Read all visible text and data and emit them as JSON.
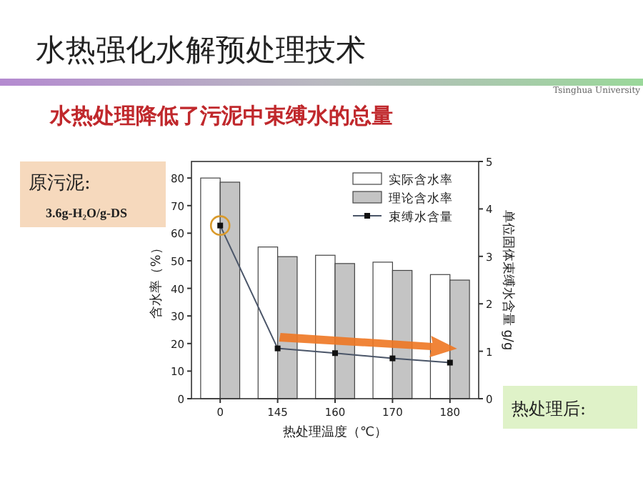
{
  "chart_data": {
    "type": "bar",
    "title": "水热强化水解预处理技术",
    "subtitle": "水热处理降低了污泥中束缚水的总量",
    "xlabel": "热处理温度（℃）",
    "ylabel": "含水率（%）",
    "y2label": "单位固体束缚水含量 g/g",
    "categories": [
      "0",
      "145",
      "160",
      "170",
      "180"
    ],
    "series": [
      {
        "name": "实际含水率",
        "color": "#ffffff",
        "values": [
          80,
          55,
          52,
          49.5,
          45
        ]
      },
      {
        "name": "理论含水率",
        "color": "#c4c4c4",
        "values": [
          78.5,
          51.5,
          49,
          46.5,
          43
        ]
      },
      {
        "name": "束缚水含量",
        "color": "#4a5568",
        "type": "line",
        "axis": "y2",
        "values": [
          3.65,
          1.06,
          0.96,
          0.85,
          0.76
        ]
      }
    ],
    "ylim": [
      0,
      86
    ],
    "yticks": [
      0,
      10,
      20,
      30,
      40,
      50,
      60,
      70,
      80
    ],
    "y2lim": [
      0,
      5
    ],
    "y2ticks": [
      0,
      1,
      2,
      3,
      4,
      5
    ],
    "legend": "top right",
    "marker": "square",
    "grid": false,
    "annotations": [
      "Tsinghua University",
      "原污泥:",
      "3.6g-H₂O/g-DS",
      "热处理后:"
    ]
  }
}
